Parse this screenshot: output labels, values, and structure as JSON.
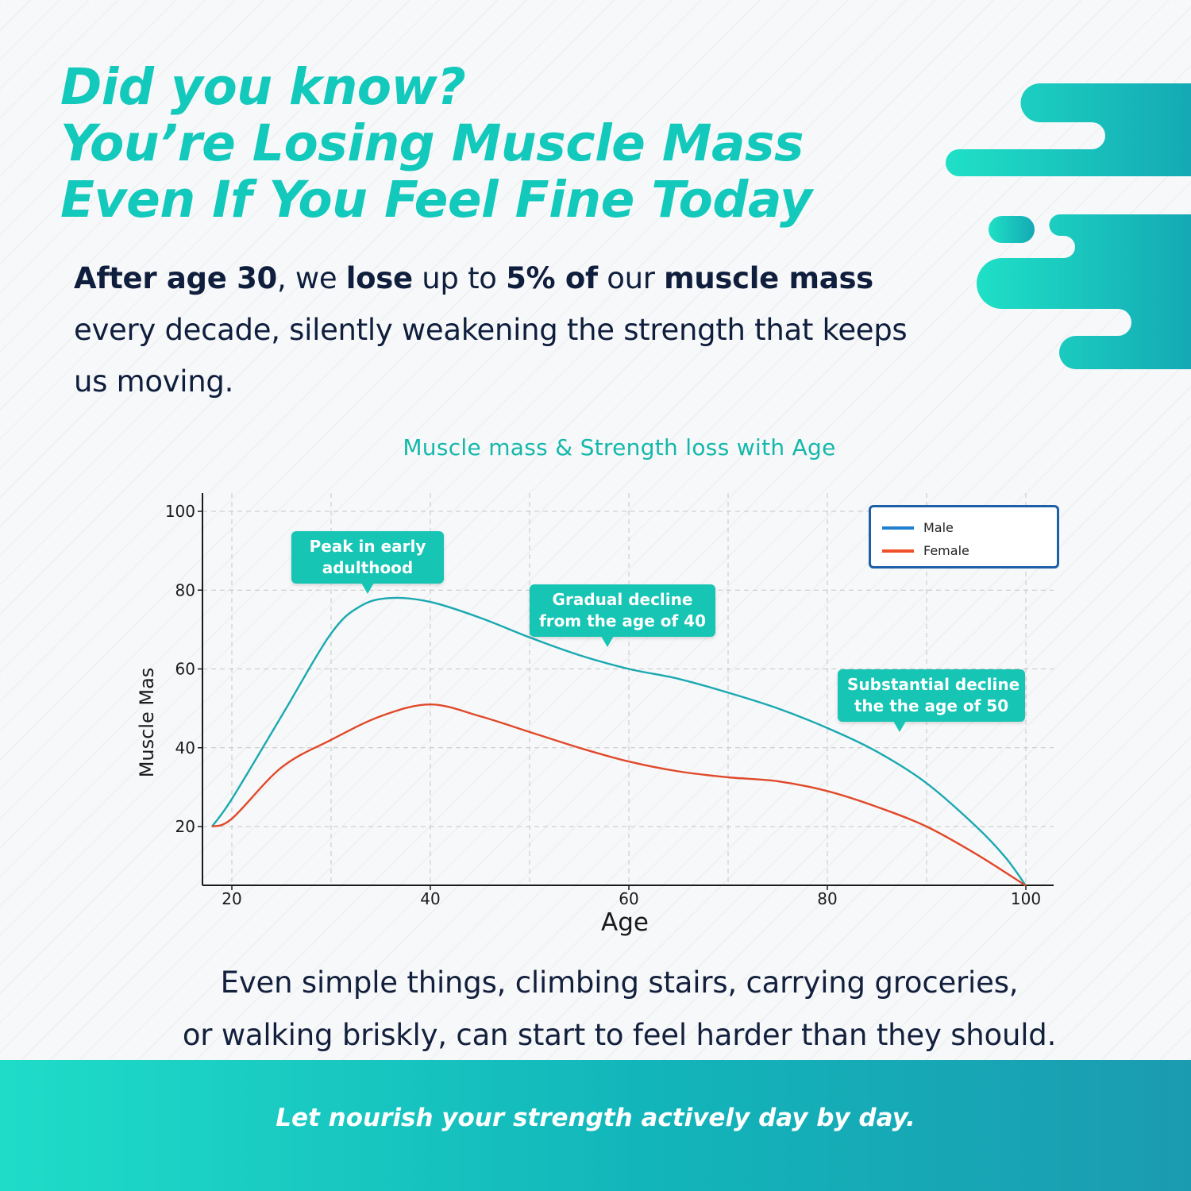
{
  "headline": {
    "line1": "Did you know?",
    "line2": "You’re Losing Muscle Mass",
    "line3": "Even If You Feel Fine Today"
  },
  "intro": {
    "b1": "After age 30",
    "t1": ", we ",
    "b2": "lose",
    "t2": " up to ",
    "b3": "5% of",
    "t3": " our ",
    "b4": "muscle mass",
    "t4": " every decade, silently weakening the strength that keeps us moving."
  },
  "closing": {
    "line1": "Even simple things, climbing stairs, carrying groceries,",
    "line2": "or walking briskly, can start to feel harder than they should."
  },
  "footer": {
    "tagline": "Let nourish your strength actively day by day."
  },
  "callouts": {
    "peak": {
      "line1": "Peak in early",
      "line2": "adulthood"
    },
    "gradual": {
      "line1": "Gradual decline",
      "line2": "from the age of 40"
    },
    "substantial": {
      "line1": "Substantial decline",
      "line2": "the the age of 50"
    }
  },
  "colors": {
    "accent": "#14c3b6",
    "male": "#1aa9b1",
    "female": "#e0492a",
    "text_dark": "#0f1e3d",
    "legend_border": "#1d5fa8",
    "legend_male_swatch": "#1f7fd0",
    "legend_female_swatch": "#f0502a"
  },
  "chart_data": {
    "type": "line",
    "title": "Muscle mass & Strength loss with Age",
    "xlabel": "Age",
    "ylabel": "Muscle Mas",
    "xlim": [
      17,
      102
    ],
    "ylim": [
      5,
      104
    ],
    "xticks": [
      20,
      40,
      60,
      80,
      100
    ],
    "yticks": [
      20,
      40,
      60,
      80,
      100
    ],
    "grid": true,
    "legend_position": "top-right",
    "series": [
      {
        "name": "Male",
        "x": [
          18,
          20,
          25,
          30,
          33,
          36,
          40,
          45,
          50,
          55,
          60,
          65,
          70,
          75,
          80,
          85,
          90,
          95,
          98,
          100
        ],
        "y": [
          20,
          27,
          48,
          69,
          76,
          78,
          77,
          73,
          68,
          63.5,
          60,
          57.5,
          54,
          50,
          45,
          39,
          31,
          20,
          12,
          5
        ]
      },
      {
        "name": "Female",
        "x": [
          18,
          20,
          25,
          30,
          35,
          40,
          45,
          50,
          55,
          60,
          65,
          70,
          75,
          80,
          85,
          90,
          95,
          100
        ],
        "y": [
          20,
          22,
          35,
          42,
          48,
          51,
          48,
          44,
          40,
          36.5,
          34,
          32.5,
          31.5,
          29,
          25,
          20,
          13,
          5
        ]
      }
    ]
  }
}
